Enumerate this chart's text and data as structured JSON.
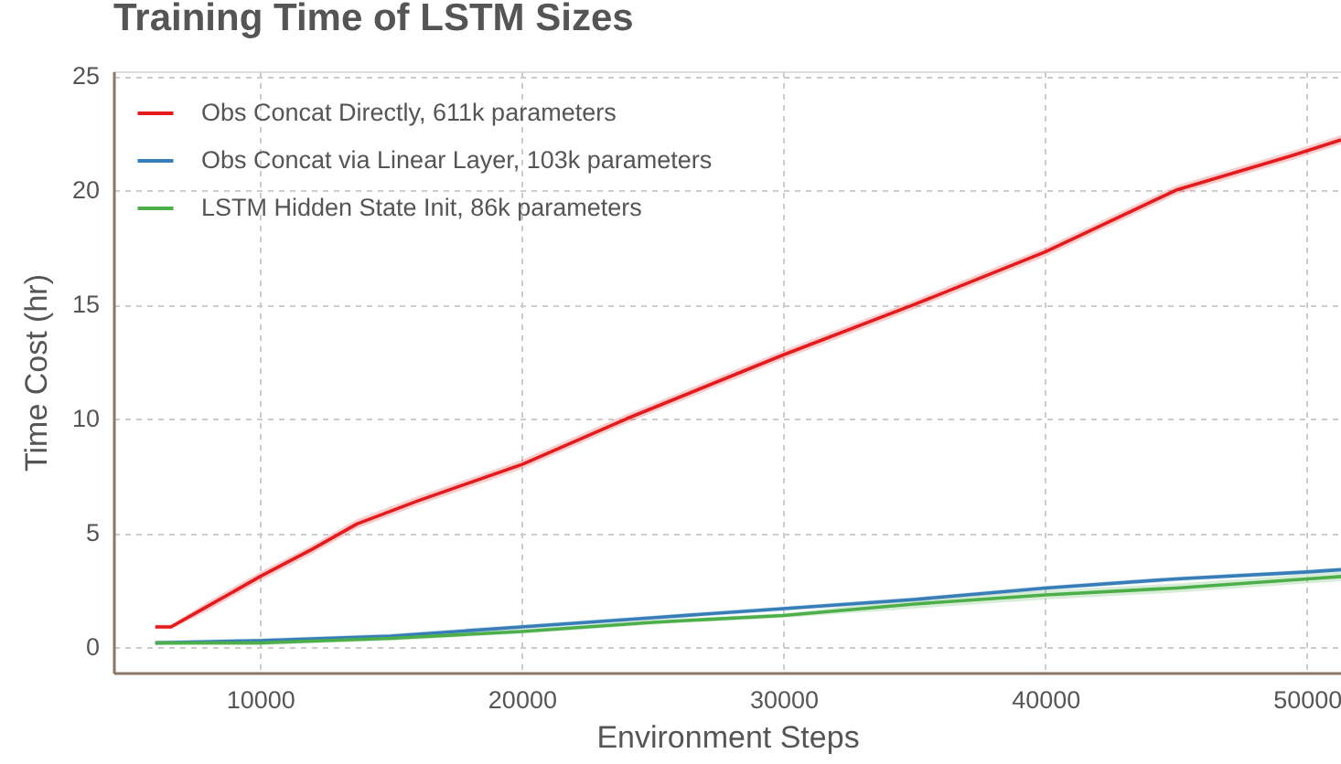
{
  "chart_data": {
    "type": "line",
    "title": "Training Time of LSTM Sizes",
    "xlabel": "Environment Steps",
    "ylabel": "Time Cost (hr)",
    "xlim": [
      4400,
      51300
    ],
    "ylim": [
      -1.1,
      25.2
    ],
    "xticks": [
      10000,
      20000,
      30000,
      40000,
      50000
    ],
    "yticks": [
      0,
      5,
      10,
      15,
      20,
      25
    ],
    "grid": true,
    "legend": "top left",
    "series": [
      {
        "name": "Obs Concat Directly, 611k parameters",
        "color": "#e41a1c",
        "x": [
          6000,
          6600,
          8000,
          10000,
          12000,
          13700,
          16000,
          20000,
          24000,
          30000,
          35000,
          40000,
          45000,
          49400,
          51300
        ],
        "values": [
          0.9,
          0.9,
          1.8,
          3.1,
          4.3,
          5.4,
          6.4,
          8.0,
          10.0,
          12.8,
          15.0,
          17.3,
          20.0,
          21.5,
          22.2
        ],
        "lower": [
          0.8,
          0.8,
          1.6,
          2.9,
          4.1,
          5.2,
          6.2,
          7.8,
          9.8,
          12.6,
          14.8,
          17.1,
          19.8,
          21.3,
          22.0
        ],
        "upper": [
          1.0,
          1.0,
          2.0,
          3.3,
          4.5,
          5.6,
          6.6,
          8.2,
          10.2,
          13.0,
          15.2,
          17.5,
          20.2,
          21.7,
          22.4
        ]
      },
      {
        "name": "Obs Concat via Linear Layer, 103k parameters",
        "color": "#377eb8",
        "x": [
          6000,
          10000,
          15000,
          20000,
          25000,
          30000,
          35000,
          40000,
          45000,
          50000,
          51300
        ],
        "values": [
          0.2,
          0.3,
          0.5,
          0.9,
          1.3,
          1.7,
          2.1,
          2.6,
          3.0,
          3.3,
          3.4
        ],
        "lower": [
          0.1,
          0.2,
          0.4,
          0.8,
          1.2,
          1.6,
          2.0,
          2.5,
          2.9,
          3.2,
          3.3
        ],
        "upper": [
          0.3,
          0.4,
          0.6,
          1.0,
          1.4,
          1.8,
          2.2,
          2.7,
          3.1,
          3.4,
          3.5
        ]
      },
      {
        "name": "LSTM Hidden State Init, 86k parameters",
        "color": "#4daf4a",
        "x": [
          6000,
          10000,
          15000,
          20000,
          25000,
          30000,
          35000,
          40000,
          45000,
          50000,
          51300
        ],
        "values": [
          0.2,
          0.2,
          0.4,
          0.7,
          1.1,
          1.4,
          1.9,
          2.3,
          2.6,
          3.0,
          3.1
        ],
        "lower": [
          0.1,
          0.1,
          0.3,
          0.6,
          1.0,
          1.3,
          1.7,
          2.1,
          2.4,
          2.8,
          2.9
        ],
        "upper": [
          0.3,
          0.3,
          0.5,
          0.8,
          1.2,
          1.5,
          2.1,
          2.5,
          2.8,
          3.2,
          3.3
        ]
      }
    ]
  }
}
